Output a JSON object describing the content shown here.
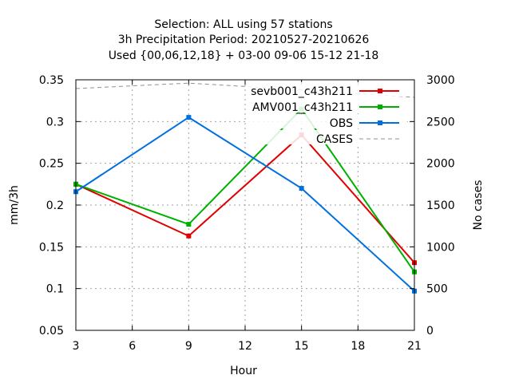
{
  "chart_data": {
    "type": "line",
    "title": [
      "Selection: ALL using    57 stations",
      "3h Precipitation   Period: 20210527-20210626",
      "Used {00,06,12,18} + 03-00 09-06 15-12 21-18"
    ],
    "xlabel": "Hour",
    "ylabel": "mm/3h",
    "y2label": "No cases",
    "xlim": [
      3,
      21
    ],
    "ylim": [
      0.05,
      0.35
    ],
    "y2lim": [
      0,
      3000
    ],
    "x_ticks": [
      "3",
      "6",
      "9",
      "12",
      "15",
      "18",
      "21"
    ],
    "y_ticks": [
      "0.05",
      "0.1",
      "0.15",
      "0.2",
      "0.25",
      "0.3",
      "0.35"
    ],
    "y2_ticks": [
      "0",
      "500",
      "1000",
      "1500",
      "2000",
      "2500",
      "3000"
    ],
    "grid": true,
    "legend_position": "top-right",
    "x": [
      3,
      9,
      15,
      21
    ],
    "series": [
      {
        "name": "sevb001_c43h211",
        "axis": "y",
        "color": "#e00000",
        "values": [
          0.225,
          0.163,
          0.284,
          0.131
        ]
      },
      {
        "name": "AMV001_c43h211",
        "axis": "y",
        "color": "#00b000",
        "values": [
          0.225,
          0.177,
          0.315,
          0.12
        ]
      },
      {
        "name": "OBS",
        "axis": "y",
        "color": "#0070e0",
        "values": [
          0.216,
          0.305,
          0.22,
          0.097
        ]
      },
      {
        "name": "CASES",
        "axis": "y2",
        "color": "#909090",
        "dashed": true,
        "values": [
          2895,
          2960,
          2880,
          2790
        ]
      }
    ]
  }
}
